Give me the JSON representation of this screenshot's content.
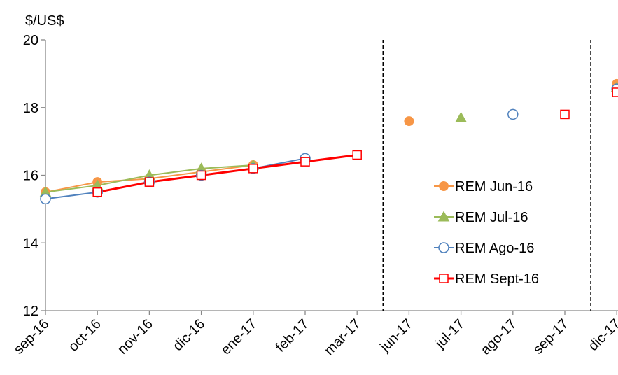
{
  "chart_data": {
    "type": "line",
    "ylabel": "$/US$",
    "ylim": [
      12,
      20
    ],
    "yticks": [
      12,
      14,
      16,
      18,
      20
    ],
    "grid": false,
    "legend_position": "right",
    "categories": [
      "sep-16",
      "oct-16",
      "nov-16",
      "dic-16",
      "ene-17",
      "feb-17",
      "mar-17",
      "jun-17",
      "jul-17",
      "ago-17",
      "sep-17",
      "dic-17"
    ],
    "separators_after": [
      "mar-17",
      "sep-17"
    ],
    "series": [
      {
        "name": "REM Jun-16",
        "color": "#F79646",
        "marker": "circle-filled",
        "values": [
          15.5,
          15.8,
          15.9,
          16.1,
          16.3,
          null,
          null,
          17.6,
          null,
          null,
          null,
          18.7
        ]
      },
      {
        "name": "REM Jul-16",
        "color": "#9BBB59",
        "marker": "triangle-filled",
        "values": [
          15.5,
          15.7,
          16.0,
          16.2,
          16.3,
          null,
          null,
          null,
          17.7,
          null,
          null,
          18.6
        ]
      },
      {
        "name": "REM Ago-16",
        "color": "#4F81BD",
        "marker": "circle-open",
        "values": [
          15.3,
          15.5,
          15.8,
          16.0,
          16.2,
          16.5,
          null,
          null,
          null,
          17.8,
          null,
          18.55
        ]
      },
      {
        "name": "REM Sept-16",
        "color": "#FF0000",
        "marker": "square-open",
        "values": [
          null,
          15.5,
          15.8,
          16.0,
          16.2,
          16.4,
          16.6,
          null,
          null,
          null,
          17.8,
          18.45
        ]
      }
    ]
  }
}
